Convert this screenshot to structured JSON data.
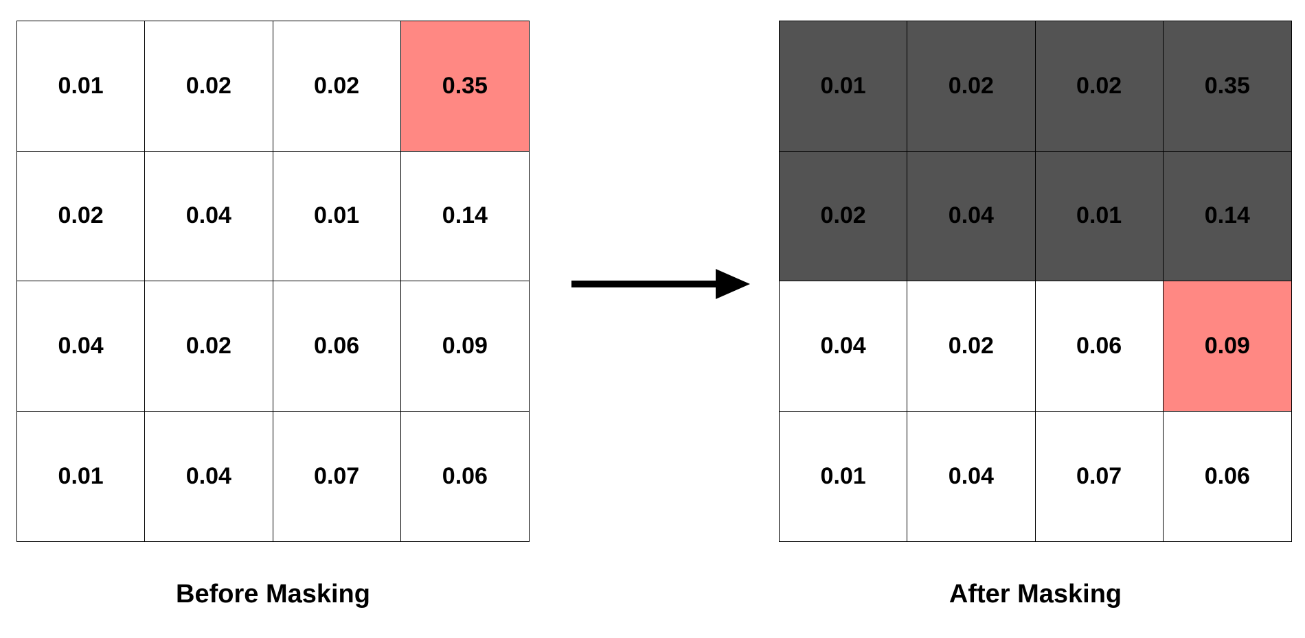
{
  "before": {
    "caption": "Before Masking",
    "grid": [
      [
        "0.01",
        "0.02",
        "0.02",
        "0.35"
      ],
      [
        "0.02",
        "0.04",
        "0.01",
        "0.14"
      ],
      [
        "0.04",
        "0.02",
        "0.06",
        "0.09"
      ],
      [
        "0.01",
        "0.04",
        "0.07",
        "0.06"
      ]
    ],
    "highlighted_cell": {
      "row": 0,
      "col": 3
    },
    "masked_rows": []
  },
  "after": {
    "caption": "After Masking",
    "grid": [
      [
        "0.01",
        "0.02",
        "0.02",
        "0.35"
      ],
      [
        "0.02",
        "0.04",
        "0.01",
        "0.14"
      ],
      [
        "0.04",
        "0.02",
        "0.06",
        "0.09"
      ],
      [
        "0.01",
        "0.04",
        "0.07",
        "0.06"
      ]
    ],
    "highlighted_cell": {
      "row": 2,
      "col": 3
    },
    "masked_rows": [
      0,
      1
    ]
  },
  "colors": {
    "highlight": "#ff8883",
    "masked": "#535353",
    "border": "#000000",
    "background": "#ffffff"
  },
  "icons": {
    "transition": "arrow-right-icon"
  }
}
